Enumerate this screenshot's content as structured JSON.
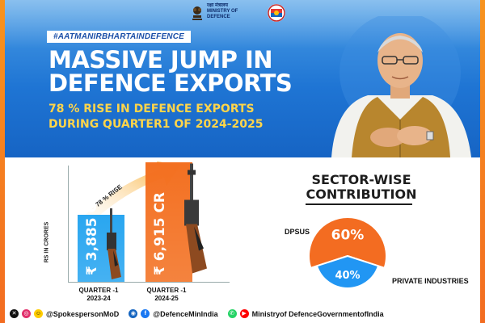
{
  "header": {
    "ministry_hindi": "रक्षा मंत्रालय",
    "ministry_line1": "MINISTRY OF",
    "ministry_line2": "DEFENCE"
  },
  "hashtag": "#AATMANIRBHARTAINDEFENCE",
  "headline_line1": "MASSIVE JUMP IN",
  "headline_line2": "DEFENCE EXPORTS",
  "subhead_line1": "78 % RISE IN DEFENCE EXPORTS",
  "subhead_line2": "DURING QUARTER1 OF 2024-2025",
  "colors": {
    "banner_blue": "#1f75d4",
    "accent_yellow": "#ffd54a",
    "bar_blue": "#29a6f0",
    "bar_orange": "#f37021",
    "pie_orange": "#f36c21",
    "pie_blue": "#2196f3"
  },
  "chart_data": [
    {
      "type": "bar",
      "ylabel": "RS IN CRORES",
      "categories": [
        "QUARTER -1 2023-24",
        "QUARTER -1 2024-25"
      ],
      "category_lines": [
        [
          "QUARTER -1",
          "2023-24"
        ],
        [
          "QUARTER -1",
          "2024-25"
        ]
      ],
      "values": [
        3885,
        6915
      ],
      "value_labels": [
        "₹ 3,885 CR",
        "₹ 6,915 CR"
      ],
      "annotation": "78 % RISE",
      "ylim": [
        0,
        7000
      ]
    },
    {
      "type": "pie",
      "title_line1": "SECTOR-WISE",
      "title_line2": "CONTRIBUTION",
      "labels": [
        "DPSUS",
        "PRIVATE INDUSTRIES"
      ],
      "values": [
        60,
        40
      ],
      "value_labels": [
        "60%",
        "40%"
      ]
    }
  ],
  "footer": {
    "handles": [
      "@SpokespersonMoD",
      "@DefenceMinIndia",
      "Ministryof DefenceGovernmentofIndia"
    ],
    "icons": [
      "x-icon",
      "instagram-icon",
      "facebook-icon",
      "youtube-icon",
      "whatsapp-icon"
    ]
  }
}
